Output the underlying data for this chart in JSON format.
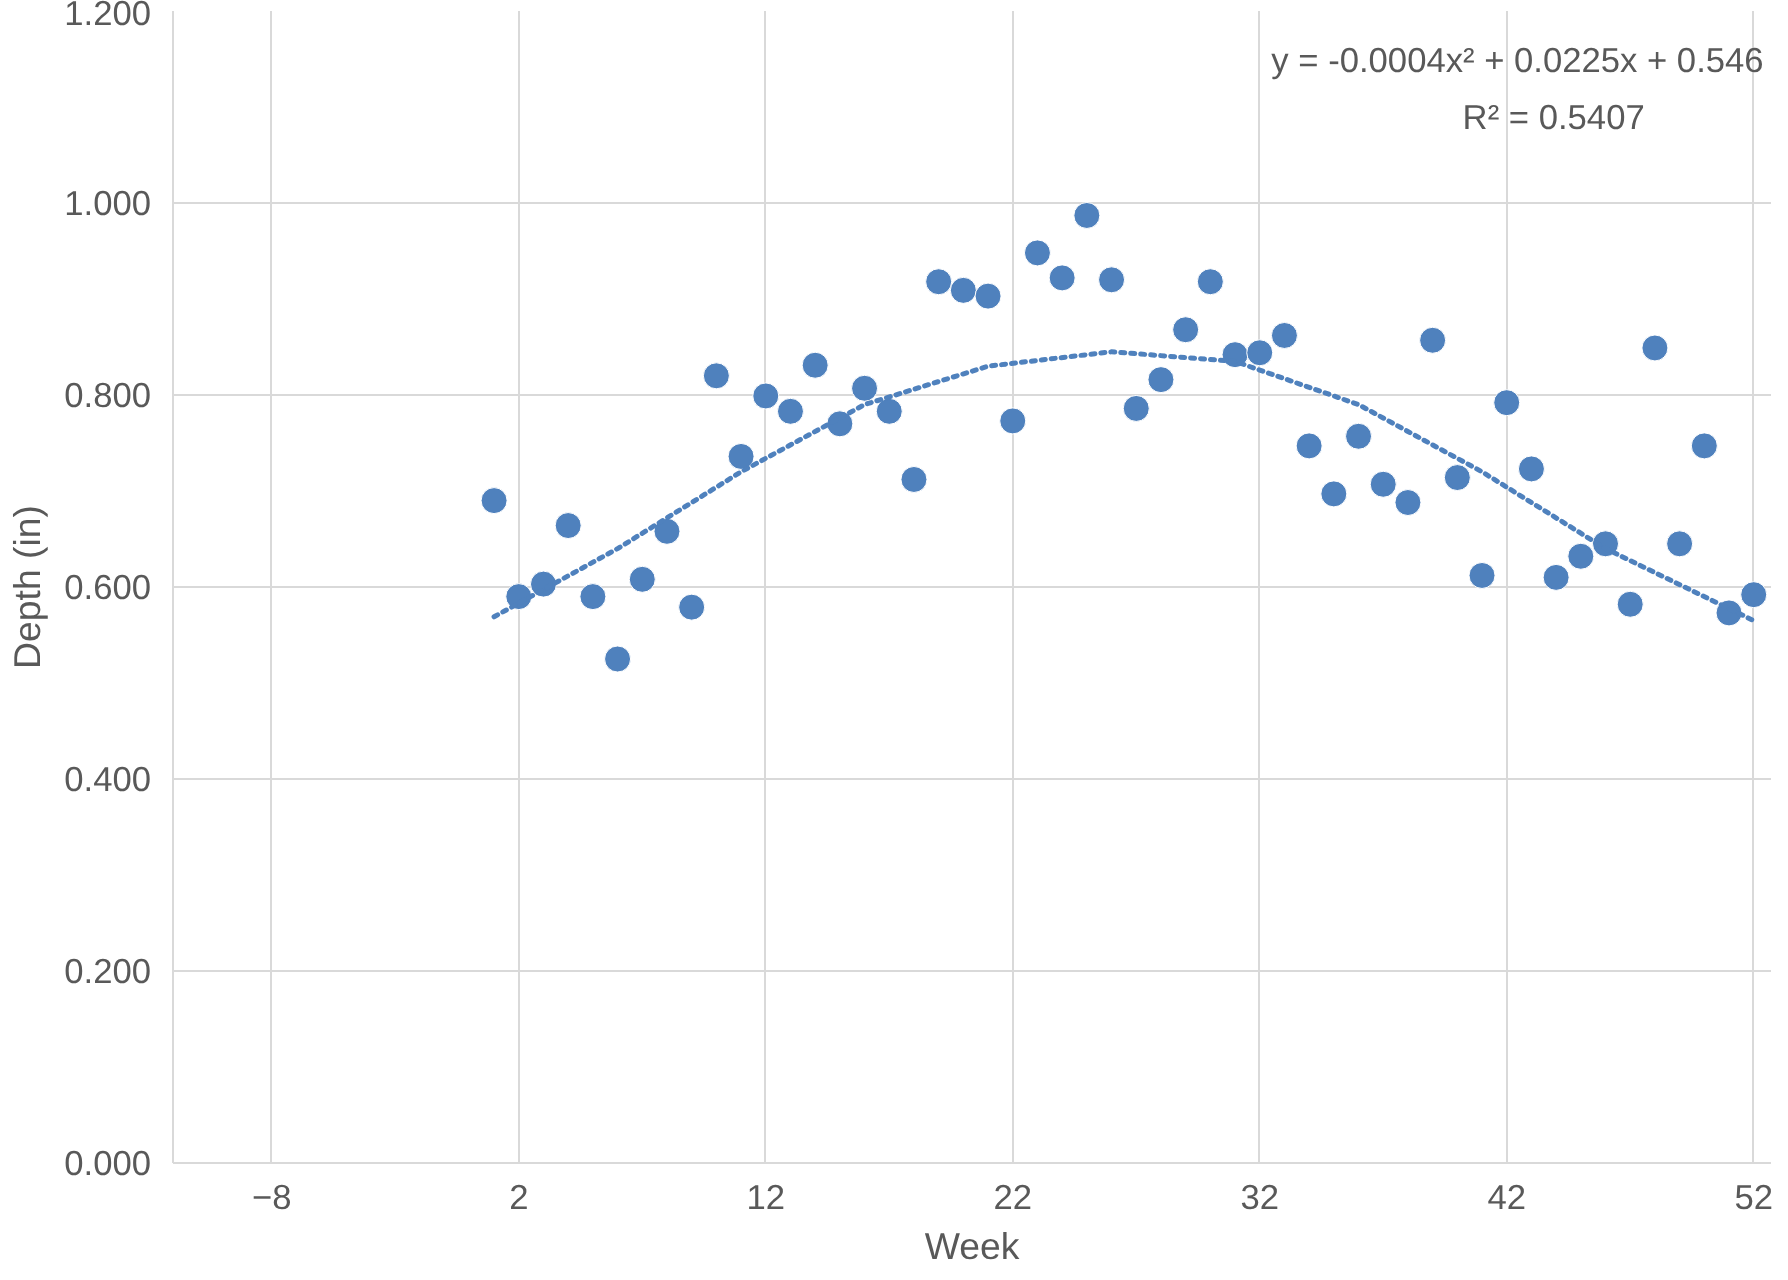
{
  "chart_data": {
    "type": "scatter",
    "xlabel": "Week",
    "ylabel": "Depth (in)",
    "xlim": [
      -12,
      52.7
    ],
    "ylim": [
      0,
      1.2
    ],
    "xticks": [
      -8,
      2,
      12,
      22,
      32,
      42,
      52
    ],
    "yticks": [
      {
        "value": 0,
        "label": "0.000"
      },
      {
        "value": 0.2,
        "label": "0.200"
      },
      {
        "value": 0.4,
        "label": "0.400"
      },
      {
        "value": 0.6,
        "label": "0.600"
      },
      {
        "value": 0.8,
        "label": "0.800"
      },
      {
        "value": 1.0,
        "label": "1.000"
      },
      {
        "value": 1.2,
        "label": "1.200"
      }
    ],
    "grid": true,
    "marker": "circle",
    "x": [
      1,
      2,
      3,
      4,
      5,
      6,
      7,
      8,
      9,
      10,
      11,
      12,
      13,
      14,
      15,
      16,
      17,
      18,
      19,
      20,
      21,
      22,
      23,
      24,
      25,
      26,
      27,
      28,
      29,
      30,
      31,
      32,
      33,
      34,
      35,
      36,
      37,
      38,
      39,
      40,
      41,
      42,
      43,
      44,
      45,
      46,
      47,
      48,
      49,
      50,
      51,
      52
    ],
    "series": [
      {
        "color": "#4f81bd",
        "values": [
          0.69,
          0.59,
          0.603,
          0.664,
          0.59,
          0.525,
          0.608,
          0.658,
          0.579,
          0.82,
          0.736,
          0.799,
          0.783,
          0.831,
          0.77,
          0.807,
          0.783,
          0.712,
          0.918,
          0.909,
          0.903,
          0.773,
          0.948,
          0.922,
          0.987,
          0.92,
          0.786,
          0.816,
          0.868,
          0.918,
          0.842,
          0.844,
          0.862,
          0.747,
          0.697,
          0.757,
          0.707,
          0.688,
          0.857,
          0.714,
          0.612,
          0.792,
          0.723,
          0.61,
          0.632,
          0.645,
          0.582,
          0.849,
          0.645,
          0.747,
          0.573,
          0.592
        ]
      },
      {
        "type": "line",
        "line_style": "dotted",
        "marker": "none",
        "color": "#4f81bd",
        "x": [
          1,
          6,
          11,
          16,
          21,
          26,
          31,
          36,
          41,
          46,
          52
        ],
        "values": [
          0.569,
          0.64,
          0.72,
          0.79,
          0.83,
          0.845,
          0.835,
          0.79,
          0.72,
          0.64,
          0.565
        ]
      }
    ],
    "annotations": [
      "y = -0.0004x² + 0.0225x + 0.546",
      "R² = 0.5407"
    ]
  }
}
